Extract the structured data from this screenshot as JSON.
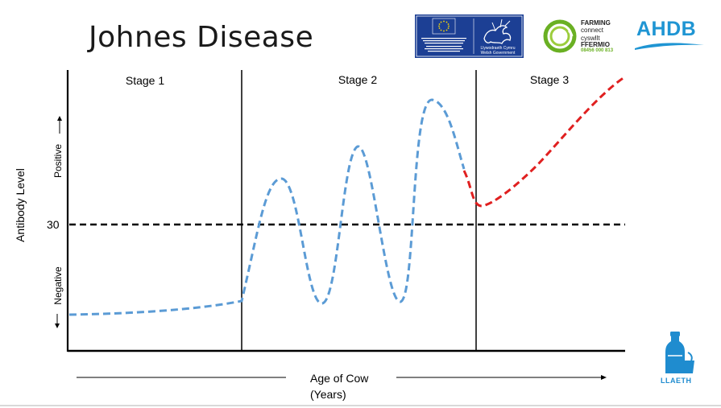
{
  "slide": {
    "title": "Johnes Disease"
  },
  "logos": {
    "eu_panel": {
      "left_text": "Cronfa Amaethyddol Ewrop ar gyfer Datblygu Gwledig: Ewrop yn Buddsoddi mewn Ardaloedd Gwledig / European Agricultural Fund for Rural Development: Europe investing in Rural Areas",
      "right_text": "Llywodraeth Cymru\nWelsh Government"
    },
    "farming_connect": {
      "line1": "FARMING",
      "line2": "connect",
      "line3": "cyswllt",
      "line4": "FFERMIO",
      "phone": "08456 000 813"
    },
    "ahdb": {
      "text": "AHDB"
    },
    "llaeth": {
      "text": "LLAETH"
    }
  },
  "diagram": {
    "stages": [
      "Stage 1",
      "Stage 2",
      "Stage 3"
    ],
    "y_axis_label": "Antibody Level",
    "positive_label": "Positive",
    "negative_label": "Negative",
    "threshold_label": "30",
    "x_axis_label_line1": "Age of Cow",
    "x_axis_label_line2": "(Years)"
  },
  "colors": {
    "blue_curve": "#5b9bd5",
    "red_curve": "#e02020",
    "eu_blue": "#1c3f94",
    "eu_star": "#ffdd00",
    "farming_green": "#6ab023",
    "ahdb_blue": "#1f95d3",
    "llaeth_blue": "#1f8ccf"
  }
}
